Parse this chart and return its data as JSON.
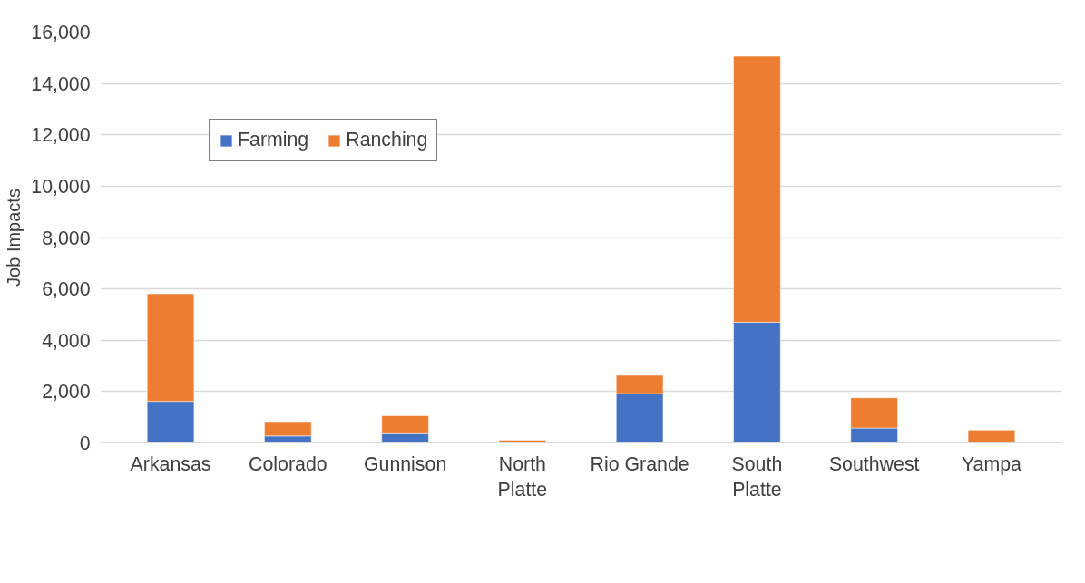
{
  "chart_data": {
    "type": "bar",
    "stacked": true,
    "ylabel": "Job Impacts",
    "categories": [
      "Arkansas",
      "Colorado",
      "Gunnison",
      "North\nPlatte",
      "Rio Grande",
      "South\nPlatte",
      "Southwest",
      "Yampa"
    ],
    "series": [
      {
        "name": "Farming",
        "color": "#4472c4",
        "values": [
          1620,
          270,
          360,
          null,
          1920,
          4700,
          580,
          0
        ]
      },
      {
        "name": "Ranching",
        "color": "#ed7d31",
        "values": [
          4190,
          560,
          700,
          110,
          710,
          10360,
          1180,
          500
        ]
      }
    ],
    "ylim": [
      0,
      16000
    ],
    "yticks": [
      {
        "value": 0,
        "label": "0"
      },
      {
        "value": 2000,
        "label": "2,000"
      },
      {
        "value": 4000,
        "label": "4,000"
      },
      {
        "value": 6000,
        "label": "6,000"
      },
      {
        "value": 8000,
        "label": "8,000"
      },
      {
        "value": 10000,
        "label": "10,000"
      },
      {
        "value": 12000,
        "label": "12,000"
      },
      {
        "value": 14000,
        "label": "14,000"
      },
      {
        "value": 16000,
        "label": "16,000"
      }
    ],
    "grid": "y",
    "legend": "top left"
  }
}
